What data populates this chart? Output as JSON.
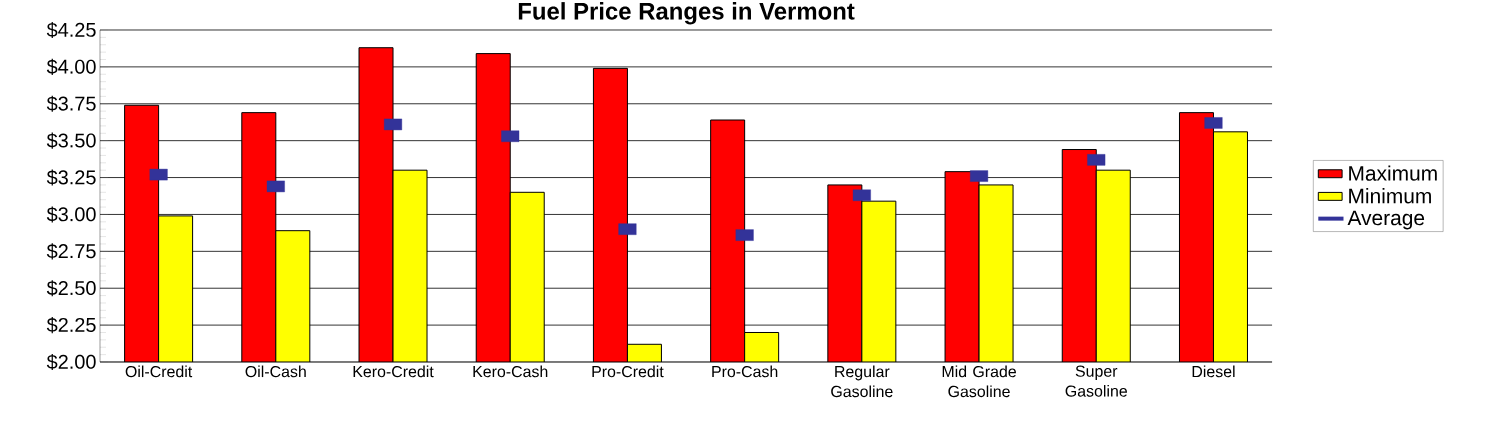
{
  "chart_data": {
    "type": "bar",
    "title": "Fuel Price Ranges in Vermont",
    "categories": [
      "Oil-Credit",
      "Oil-Cash",
      "Kero-Credit",
      "Kero-Cash",
      "Pro-Credit",
      "Pro-Cash",
      "Regular Gasoline",
      "Mid Grade Gasoline",
      "Super Gasoline",
      "Diesel"
    ],
    "series": [
      {
        "name": "Maximum",
        "type": "bar",
        "color": "#ff0000",
        "values": [
          3.74,
          3.69,
          4.13,
          4.09,
          3.99,
          3.64,
          3.2,
          3.29,
          3.44,
          3.69
        ]
      },
      {
        "name": "Minimum",
        "type": "bar",
        "color": "#ffff00",
        "values": [
          2.99,
          2.89,
          3.3,
          3.15,
          2.12,
          2.2,
          3.09,
          3.2,
          3.3,
          3.56
        ]
      },
      {
        "name": "Average",
        "type": "scatter",
        "marker": "square",
        "color": "#333399",
        "values": [
          3.27,
          3.19,
          3.61,
          3.53,
          2.9,
          2.86,
          3.13,
          3.26,
          3.37,
          3.62
        ]
      }
    ],
    "ylim": [
      2.0,
      4.25
    ],
    "yticks": [
      {
        "value": 2.0,
        "label": "$2.00"
      },
      {
        "value": 2.25,
        "label": "$2.25"
      },
      {
        "value": 2.5,
        "label": "$2.50"
      },
      {
        "value": 2.75,
        "label": "$2.75"
      },
      {
        "value": 3.0,
        "label": "$3.00"
      },
      {
        "value": 3.25,
        "label": "$3.25"
      },
      {
        "value": 3.5,
        "label": "$3.50"
      },
      {
        "value": 3.75,
        "label": "$3.75"
      },
      {
        "value": 4.0,
        "label": "$4.00"
      },
      {
        "value": 4.25,
        "label": "$4.25"
      }
    ],
    "grid": "y",
    "legend": "right"
  }
}
